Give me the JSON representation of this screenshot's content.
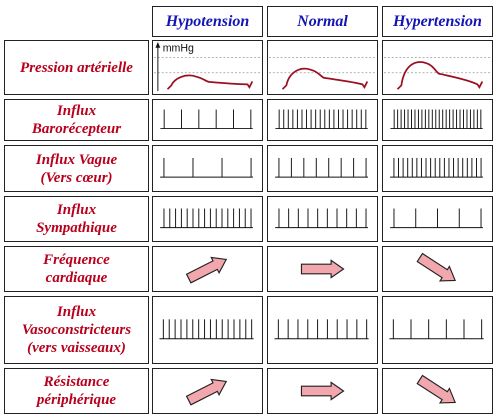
{
  "columns": [
    "Hypotension",
    "Normal",
    "Hypertension"
  ],
  "rows": [
    {
      "label": "Pression artérielle",
      "kind": "pressure"
    },
    {
      "label": "Influx\nBarorécepteur",
      "kind": "spikes",
      "counts": [
        6,
        20,
        26
      ]
    },
    {
      "label": "Influx Vague\n(Vers cœur)",
      "kind": "spikes",
      "counts": [
        4,
        8,
        20
      ]
    },
    {
      "label": "Influx\nSympathique",
      "kind": "spikes",
      "counts": [
        16,
        10,
        5
      ]
    },
    {
      "label": "Fréquence\ncardiaque",
      "kind": "arrow",
      "directions": [
        "up",
        "flat",
        "down"
      ]
    },
    {
      "label": "Influx\nVasoconstricteurs\n(vers vaisseaux)",
      "kind": "spikes",
      "counts": [
        16,
        10,
        6
      ]
    },
    {
      "label": "Résistance\npériphérique",
      "kind": "arrow",
      "directions": [
        "up",
        "flat",
        "down"
      ]
    }
  ],
  "pressure_unit": "mmHg",
  "pressure_levels": [
    "low",
    "normal",
    "high"
  ],
  "colors": {
    "header_text": "#1414b4",
    "row_label_text": "#b8001c",
    "pressure_curve": "#9b1020",
    "arrow_fill": "#f2a6ae",
    "arrow_stroke": "#222222",
    "border": "#222222"
  }
}
